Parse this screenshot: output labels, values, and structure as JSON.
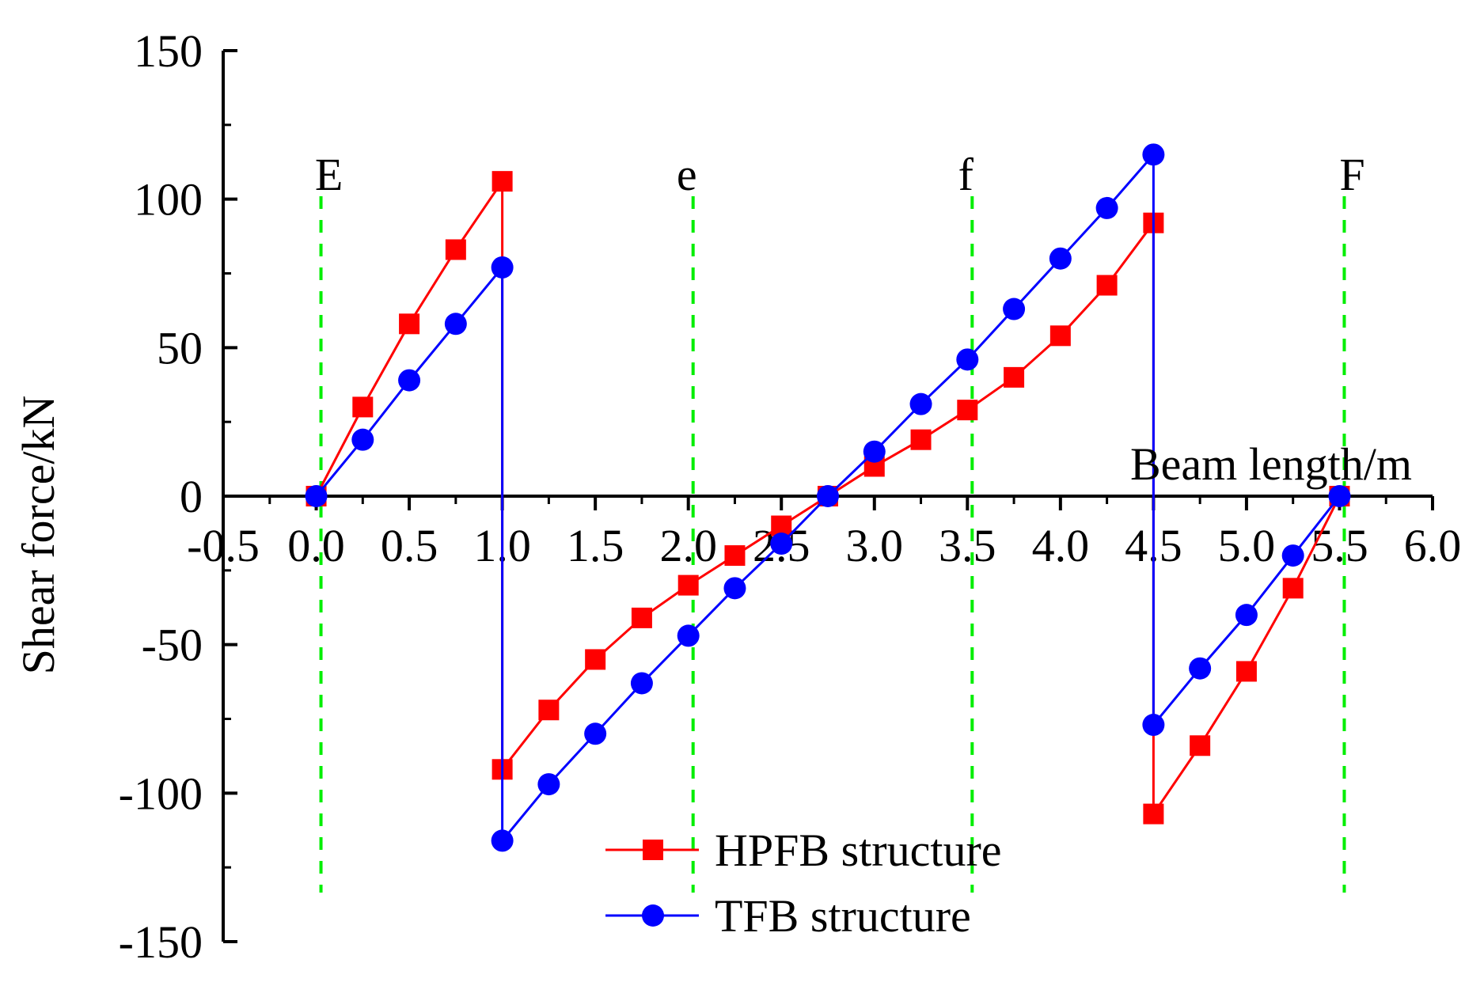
{
  "chart_data": {
    "type": "line",
    "title": "",
    "xlabel": "Beam length/m",
    "ylabel": "Shear force/kN",
    "xlim": [
      -0.5,
      6.0
    ],
    "ylim": [
      -150,
      150
    ],
    "x_ticks": [
      "-0.5",
      "0.0",
      "0.5",
      "1.0",
      "1.5",
      "2.0",
      "2.5",
      "3.0",
      "3.5",
      "4.0",
      "4.5",
      "5.0",
      "5.5",
      "6.0"
    ],
    "x_tick_values": [
      -0.5,
      0.0,
      0.5,
      1.0,
      1.5,
      2.0,
      2.5,
      3.0,
      3.5,
      4.0,
      4.5,
      5.0,
      5.5,
      6.0
    ],
    "y_ticks": [
      "150",
      "100",
      "50",
      "0",
      "-50",
      "-100",
      "-150"
    ],
    "y_tick_values": [
      150,
      100,
      50,
      0,
      -50,
      -100,
      -150
    ],
    "grid": false,
    "legend_position": "bottom-center",
    "section_markers": [
      {
        "label": "E",
        "x": 0.0
      },
      {
        "label": "e",
        "x": 2.0
      },
      {
        "label": "f",
        "x": 3.5
      },
      {
        "label": "F",
        "x": 5.5
      }
    ],
    "series": [
      {
        "name": "HPFB structure",
        "color": "#ff0000",
        "marker": "square",
        "points": [
          [
            0.0,
            0
          ],
          [
            0.25,
            30
          ],
          [
            0.5,
            58
          ],
          [
            0.75,
            83
          ],
          [
            1.0,
            106
          ],
          [
            1.0,
            -92
          ],
          [
            1.25,
            -72
          ],
          [
            1.5,
            -55
          ],
          [
            1.75,
            -41
          ],
          [
            2.0,
            -30
          ],
          [
            2.25,
            -20
          ],
          [
            2.5,
            -10
          ],
          [
            2.75,
            0
          ],
          [
            3.0,
            10
          ],
          [
            3.25,
            19
          ],
          [
            3.5,
            29
          ],
          [
            3.75,
            40
          ],
          [
            4.0,
            54
          ],
          [
            4.25,
            71
          ],
          [
            4.5,
            92
          ],
          [
            4.5,
            -107
          ],
          [
            4.75,
            -84
          ],
          [
            5.0,
            -59
          ],
          [
            5.25,
            -31
          ],
          [
            5.5,
            0
          ]
        ]
      },
      {
        "name": "TFB structure",
        "color": "#0000ff",
        "marker": "circle",
        "points": [
          [
            0.0,
            0
          ],
          [
            0.25,
            19
          ],
          [
            0.5,
            39
          ],
          [
            0.75,
            58
          ],
          [
            1.0,
            77
          ],
          [
            1.0,
            -116
          ],
          [
            1.25,
            -97
          ],
          [
            1.5,
            -80
          ],
          [
            1.75,
            -63
          ],
          [
            2.0,
            -47
          ],
          [
            2.25,
            -31
          ],
          [
            2.5,
            -16
          ],
          [
            2.75,
            0
          ],
          [
            3.0,
            15
          ],
          [
            3.25,
            31
          ],
          [
            3.5,
            46
          ],
          [
            3.75,
            63
          ],
          [
            4.0,
            80
          ],
          [
            4.25,
            97
          ],
          [
            4.5,
            115
          ],
          [
            4.5,
            -77
          ],
          [
            4.75,
            -58
          ],
          [
            5.0,
            -40
          ],
          [
            5.25,
            -20
          ],
          [
            5.5,
            0
          ]
        ]
      }
    ],
    "marker_line_color": "#00ee00"
  }
}
